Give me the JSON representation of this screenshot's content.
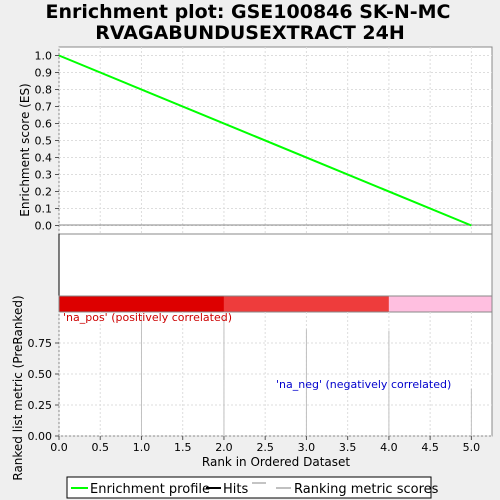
{
  "chart_data": {
    "title_line1": "Enrichment plot: GSE100846 SK-N-MC",
    "title_line2": "RVAGABUNDUSEXTRACT 24H",
    "panels": [
      {
        "type": "line",
        "ylabel": "Enrichment score (ES)",
        "xlim": [
          0,
          5.25
        ],
        "ylim": [
          -0.05,
          1.05
        ],
        "yticks": [
          "0.0",
          "0.1",
          "0.2",
          "0.3",
          "0.4",
          "0.5",
          "0.6",
          "0.7",
          "0.8",
          "0.9",
          "1.0"
        ],
        "ytick_values": [
          0,
          0.1,
          0.2,
          0.3,
          0.4,
          0.5,
          0.6,
          0.7,
          0.8,
          0.9,
          1.0
        ],
        "grid": true,
        "series": [
          {
            "name": "Enrichment profile",
            "x": [
              0,
              5
            ],
            "y": [
              1.0,
              0.0
            ],
            "color": "#00ff00"
          }
        ]
      },
      {
        "type": "hits",
        "hit_positions": [
          0
        ],
        "heatmap_segments": [
          {
            "x0": 0,
            "x1": 2,
            "color": "#dd0000"
          },
          {
            "x0": 2,
            "x1": 4,
            "color": "#ee3c3c"
          },
          {
            "x0": 4,
            "x1": 5.25,
            "color": "#ffbfe0"
          }
        ]
      },
      {
        "type": "bar",
        "xlabel": "Rank in Ordered Dataset",
        "ylabel": "Ranked list metric (PreRanked)",
        "xlim": [
          0,
          5.25
        ],
        "ylim": [
          0,
          1.0
        ],
        "xticks": [
          "0.0",
          "0.5",
          "1.0",
          "1.5",
          "2.0",
          "2.5",
          "3.0",
          "3.5",
          "4.0",
          "4.5",
          "5.0"
        ],
        "xtick_values": [
          0,
          0.5,
          1.0,
          1.5,
          2.0,
          2.5,
          3.0,
          3.5,
          4.0,
          4.5,
          5.0
        ],
        "yticks": [
          "0.00",
          "0.25",
          "0.50",
          "0.75"
        ],
        "ytick_values": [
          0,
          0.25,
          0.5,
          0.75
        ],
        "grid": true,
        "x": [
          1,
          2,
          3,
          4,
          5
        ],
        "values": [
          0.97,
          0.95,
          0.86,
          0.85,
          0.38
        ],
        "annotations": {
          "positive": "'na_pos' (positively correlated)",
          "negative": "'na_neg' (negatively correlated)"
        }
      }
    ],
    "legend": {
      "placement": "bottom",
      "items": [
        {
          "label": "Enrichment profile",
          "color": "#00ff00"
        },
        {
          "label": "Hits",
          "color": "#000000"
        },
        {
          "label": "Ranking metric scores",
          "color": "#c0c0c0"
        }
      ]
    },
    "colors": {
      "positive_text": "#cc0000",
      "negative_text": "#0000cc"
    }
  }
}
